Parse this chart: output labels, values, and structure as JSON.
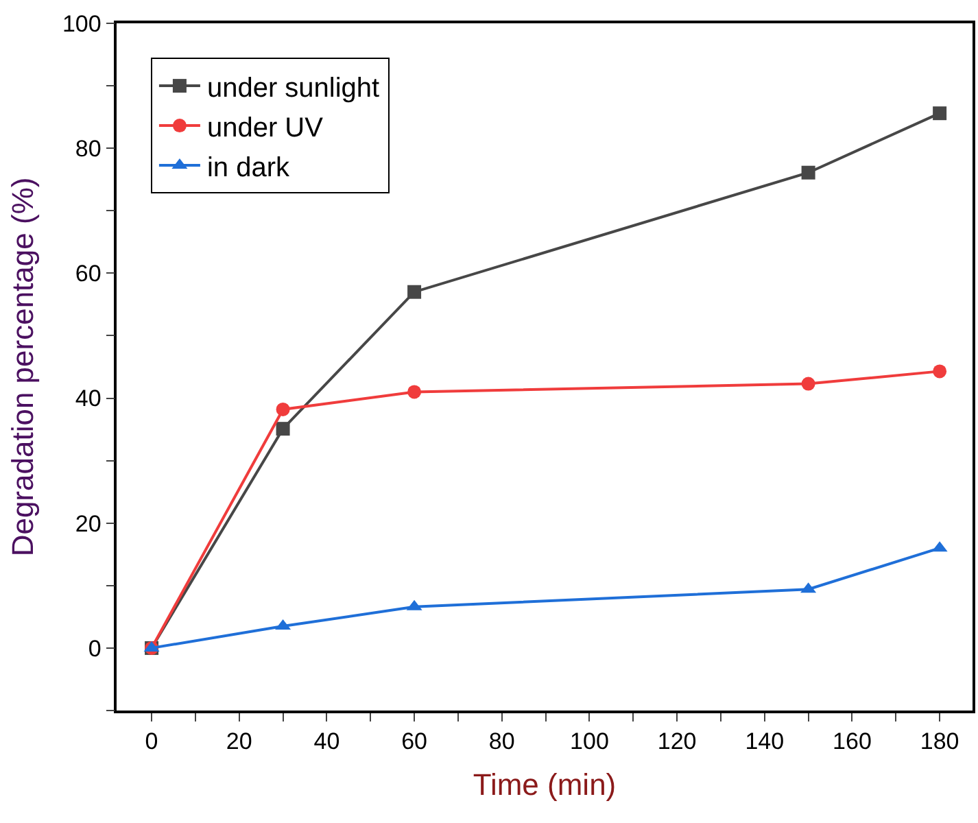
{
  "chart_data": {
    "type": "line",
    "xlabel": "Time (min)",
    "ylabel": "Degradation percentage (%)",
    "x": [
      0,
      30,
      60,
      150,
      180
    ],
    "series": [
      {
        "name": "under sunlight",
        "color": "#474747",
        "marker": "square",
        "values": [
          0,
          35.1,
          57,
          76.1,
          85.6
        ]
      },
      {
        "name": "under UV",
        "color": "#f03c3c",
        "marker": "circle",
        "values": [
          0,
          38.2,
          41,
          42.3,
          44.3
        ]
      },
      {
        "name": "in dark",
        "color": "#1f6fd8",
        "marker": "triangle",
        "values": [
          0,
          3.5,
          6.6,
          9.4,
          16
        ]
      }
    ],
    "xlim": [
      -8,
      187.5
    ],
    "ylim": [
      -10,
      100
    ],
    "xticks": [
      0,
      {
        "value": 10,
        "label": null
      },
      20,
      {
        "value": 30,
        "label": null
      },
      40,
      {
        "value": 50,
        "label": null
      },
      60,
      {
        "value": 70,
        "label": null
      },
      80,
      {
        "value": 90,
        "label": null
      },
      100,
      {
        "value": 110,
        "label": null
      },
      120,
      {
        "value": 130,
        "label": null
      },
      140,
      {
        "value": 150,
        "label": null
      },
      160,
      {
        "value": 170,
        "label": null
      },
      180
    ],
    "yticks": [
      {
        "value": -10,
        "label": null
      },
      0,
      {
        "value": 10,
        "label": null
      },
      20,
      {
        "value": 30,
        "label": null
      },
      40,
      {
        "value": 50,
        "label": null
      },
      60,
      {
        "value": 70,
        "label": null
      },
      80,
      {
        "value": 90,
        "label": null
      },
      100
    ],
    "legend": "top left",
    "line_style": "solid"
  }
}
